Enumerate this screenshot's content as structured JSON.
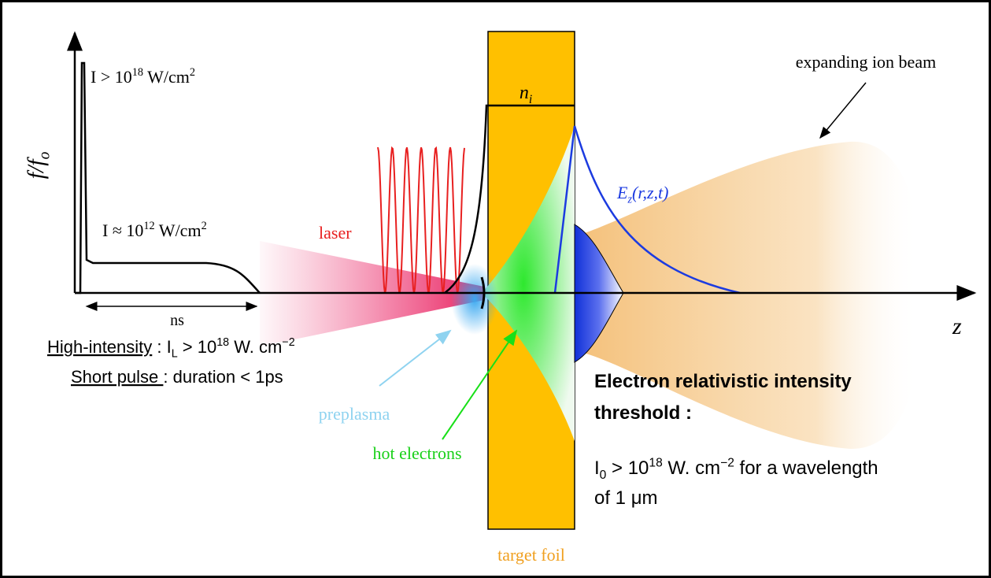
{
  "axis_label": {
    "parts": [
      {
        "text": "f/f"
      },
      {
        "sub": "o"
      }
    ]
  },
  "peak_intensity": {
    "parts": [
      {
        "text": "I > 10"
      },
      {
        "sup": "18"
      },
      {
        "text": " W/cm"
      },
      {
        "sup": "2"
      }
    ]
  },
  "pedestal_intensity": {
    "parts": [
      {
        "text": "I ≈ 10"
      },
      {
        "sup": "12"
      },
      {
        "text": " W/cm"
      },
      {
        "sup": "2"
      }
    ]
  },
  "duration_label": {
    "parts": [
      {
        "text": "ns"
      }
    ]
  },
  "laser_label": {
    "parts": [
      {
        "text": "laser"
      }
    ]
  },
  "density_label": {
    "parts": [
      {
        "text": "n"
      },
      {
        "sub": "i"
      }
    ]
  },
  "ion_beam_label": {
    "parts": [
      {
        "text": "expanding ion beam"
      }
    ]
  },
  "field_label": {
    "parts": [
      {
        "text": "E"
      },
      {
        "sub": "z"
      },
      {
        "text": "(r,z,t)"
      }
    ]
  },
  "z_axis_label": {
    "parts": [
      {
        "text": "z"
      }
    ]
  },
  "high_intensity": {
    "parts": [
      {
        "text": "High-intensity",
        "underline": true
      },
      {
        "text": " : I"
      },
      {
        "sub": "L"
      },
      {
        "text": " > 10"
      },
      {
        "sup": "18"
      },
      {
        "text": " W. cm"
      },
      {
        "sup": "−2"
      }
    ]
  },
  "short_pulse": {
    "parts": [
      {
        "text": "Short pulse ",
        "underline": true
      },
      {
        "text": ":  duration < 1ps"
      }
    ]
  },
  "preplasma_label": {
    "parts": [
      {
        "text": "preplasma"
      }
    ]
  },
  "hot_electrons_label": {
    "parts": [
      {
        "text": "hot electrons"
      }
    ]
  },
  "target_label": {
    "parts": [
      {
        "text": "target foil"
      }
    ]
  },
  "threshold_title_1": {
    "parts": [
      {
        "text": "Electron relativistic intensity"
      }
    ]
  },
  "threshold_title_2": {
    "parts": [
      {
        "text": "threshold"
      },
      {
        "text": " :"
      }
    ]
  },
  "threshold_value": {
    "parts": [
      {
        "text": "I"
      },
      {
        "sub": "0"
      },
      {
        "text": " > 10"
      },
      {
        "sup": "18"
      },
      {
        "text": " W. cm"
      },
      {
        "sup": "−2"
      },
      {
        "text": " for a wavelength"
      }
    ]
  },
  "threshold_wavelength": {
    "parts": [
      {
        "text": "of 1 μm"
      }
    ]
  }
}
